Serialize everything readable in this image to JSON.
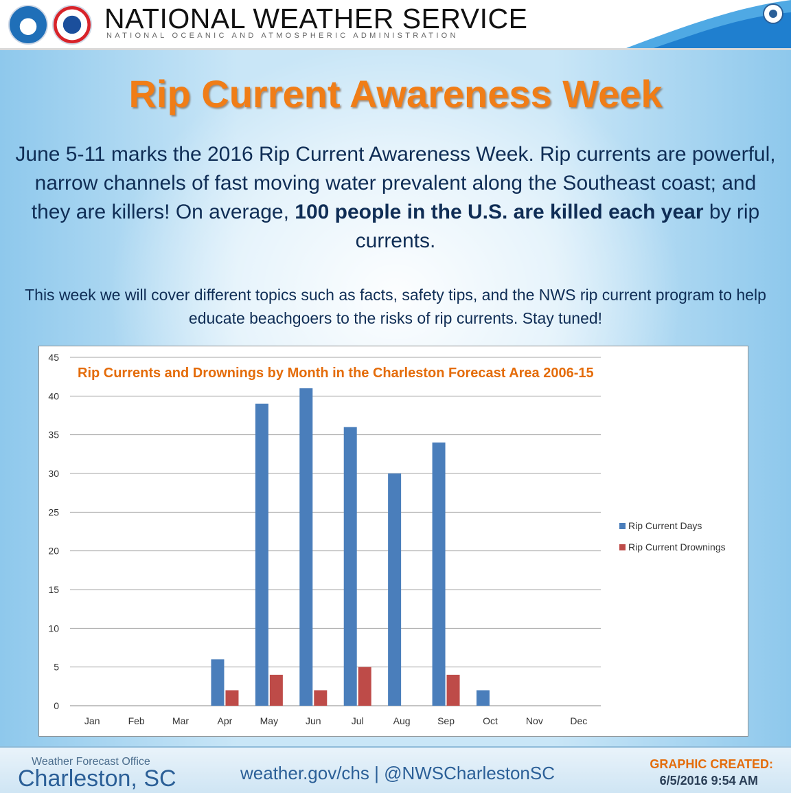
{
  "header": {
    "org_title": "NATIONAL WEATHER SERVICE",
    "org_subtitle": "NATIONAL OCEANIC AND ATMOSPHERIC ADMINISTRATION"
  },
  "main_title": "Rip Current Awareness Week",
  "intro": {
    "part1": "June 5-11 marks the 2016 Rip Current Awareness Week.  Rip currents are powerful, narrow channels of fast moving water prevalent along the Southeast coast; and they are killers! On average, ",
    "emphasis": "100 people in the U.S. are killed each year",
    "part2": " by rip currents."
  },
  "subtext": "This week we will cover different topics such as facts, safety tips, and the NWS rip current program to help educate beachgoers to the risks of rip currents. Stay tuned!",
  "chart_data": {
    "type": "bar",
    "title": "Rip Currents and Drownings by Month in the Charleston Forecast Area 2006-15",
    "categories": [
      "Jan",
      "Feb",
      "Mar",
      "Apr",
      "May",
      "Jun",
      "Jul",
      "Aug",
      "Sep",
      "Oct",
      "Nov",
      "Dec"
    ],
    "series": [
      {
        "name": "Rip Current Days",
        "color": "#4a7ebb",
        "values": [
          0,
          0,
          0,
          6,
          39,
          41,
          36,
          30,
          34,
          2,
          0,
          0
        ]
      },
      {
        "name": "Rip Current Drownings",
        "color": "#be4b48",
        "values": [
          0,
          0,
          0,
          2,
          4,
          2,
          5,
          0,
          4,
          0,
          0,
          0
        ]
      }
    ],
    "ylim": [
      0,
      45
    ],
    "yticks": [
      0,
      5,
      10,
      15,
      20,
      25,
      30,
      35,
      40,
      45
    ],
    "grid": true,
    "legend": "right",
    "xlabel": "",
    "ylabel": ""
  },
  "footer": {
    "wfo_label": "Weather Forecast Office",
    "office_name": "Charleston, SC",
    "links": "weather.gov/chs | @NWSCharlestonSC",
    "created_label": "GRAPHIC CREATED:",
    "created_time": "6/5/2016 9:54 AM"
  }
}
